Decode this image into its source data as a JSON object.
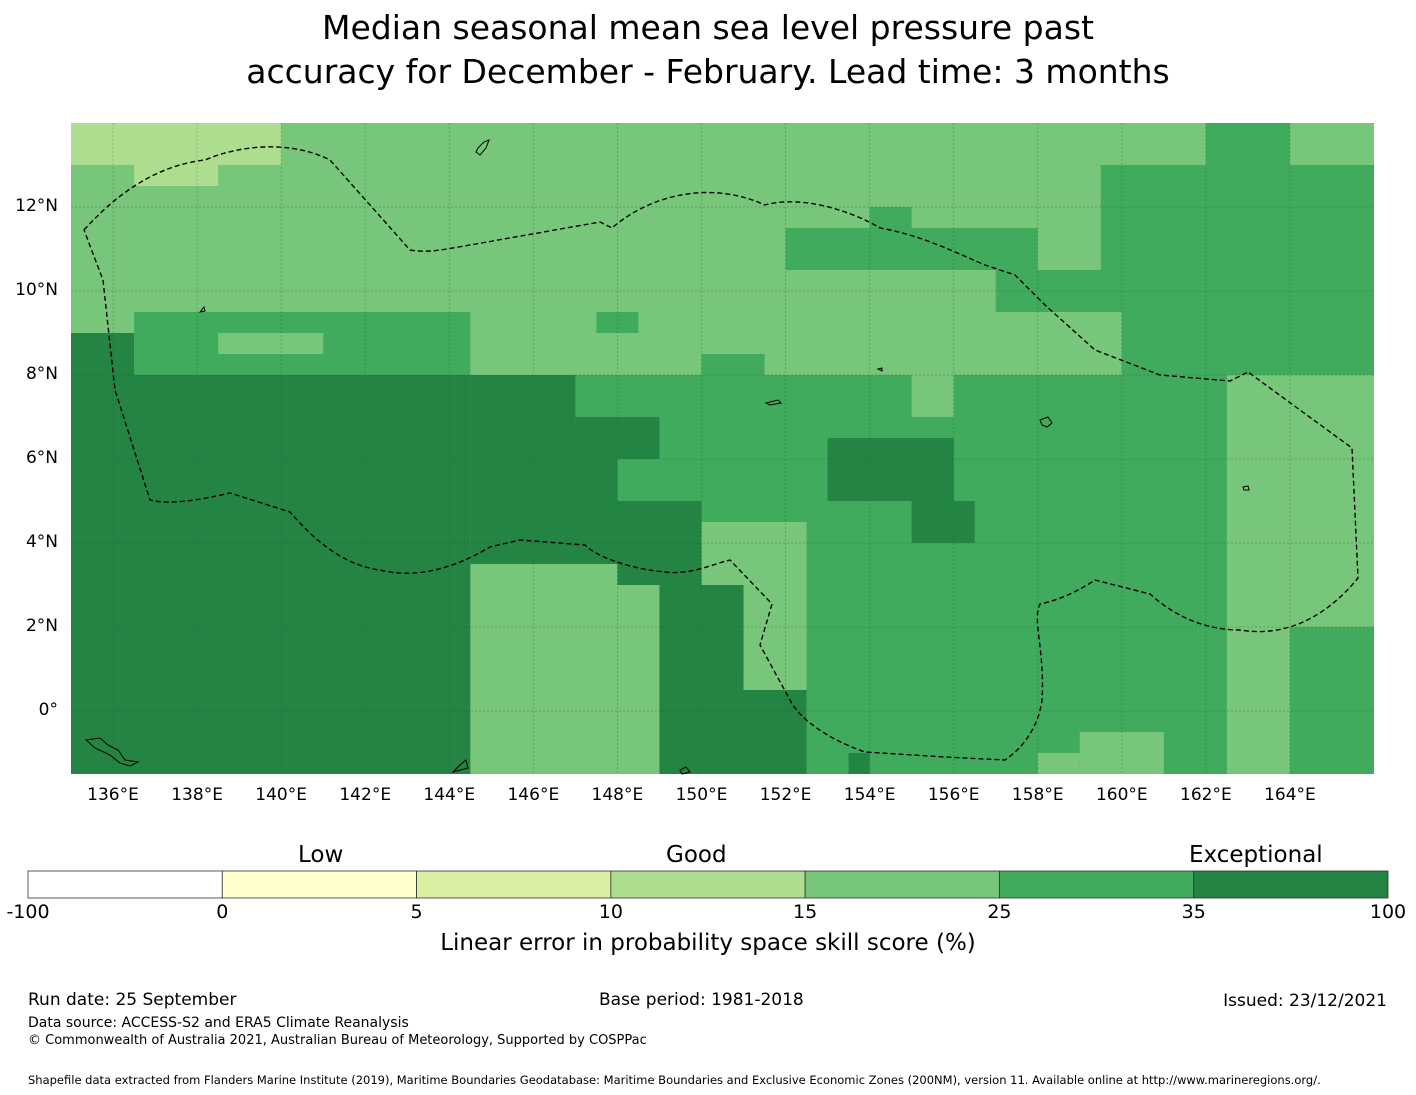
{
  "title": {
    "line1": "Median seasonal mean sea level pressure past",
    "line2": "accuracy for December - February. Lead time: 3 months"
  },
  "map": {
    "lon_labels": [
      "136°E",
      "138°E",
      "140°E",
      "142°E",
      "144°E",
      "146°E",
      "148°E",
      "150°E",
      "152°E",
      "154°E",
      "156°E",
      "158°E",
      "160°E",
      "162°E",
      "164°E"
    ],
    "lat_labels": [
      "12°N",
      "10°N",
      "8°N",
      "6°N",
      "4°N",
      "2°N",
      "0°"
    ],
    "lon_values": [
      136,
      138,
      140,
      142,
      144,
      146,
      148,
      150,
      152,
      154,
      156,
      158,
      160,
      162,
      164
    ],
    "lat_values": [
      12,
      10,
      8,
      6,
      4,
      2,
      0
    ],
    "lon_range": [
      135,
      166
    ],
    "lat_range": [
      -1.5,
      14
    ],
    "eez_boundary_style": "dashed",
    "skill_regions": [
      {
        "lon": [
          135,
          166
        ],
        "lat": [
          -1.5,
          14
        ],
        "class": "15-25"
      },
      {
        "lon": [
          135,
          140
        ],
        "lat": [
          13,
          14
        ],
        "class": "10-15"
      },
      {
        "lon": [
          135,
          136.5
        ],
        "lat": [
          10.5,
          13
        ],
        "class": "15-25"
      },
      {
        "lon": [
          136.5,
          138.5
        ],
        "lat": [
          12.5,
          13.5
        ],
        "class": "10-15"
      },
      {
        "lon": [
          152,
          158
        ],
        "lat": [
          10.5,
          11.5
        ],
        "class": "25-35"
      },
      {
        "lon": [
          154,
          155
        ],
        "lat": [
          11.5,
          12
        ],
        "class": "25-35"
      },
      {
        "lon": [
          157,
          166
        ],
        "lat": [
          9.5,
          10.5
        ],
        "class": "25-35"
      },
      {
        "lon": [
          159.5,
          166
        ],
        "lat": [
          10.5,
          13
        ],
        "class": "25-35"
      },
      {
        "lon": [
          162,
          164
        ],
        "lat": [
          13,
          14
        ],
        "class": "25-35"
      },
      {
        "lon": [
          160,
          166
        ],
        "lat": [
          8,
          9.5
        ],
        "class": "25-35"
      },
      {
        "lon": [
          136.5,
          144.5
        ],
        "lat": [
          8,
          9.5
        ],
        "class": "25-35"
      },
      {
        "lon": [
          135,
          136.5
        ],
        "lat": [
          8,
          9
        ],
        "class": "35-100"
      },
      {
        "lon": [
          138.5,
          141
        ],
        "lat": [
          8.5,
          9
        ],
        "class": "15-25"
      },
      {
        "lon": [
          145,
          146.5
        ],
        "lat": [
          7.5,
          8
        ],
        "class": "15-25"
      },
      {
        "lon": [
          147.5,
          148.5
        ],
        "lat": [
          9,
          9.5
        ],
        "class": "25-35"
      },
      {
        "lon": [
          150,
          151.5
        ],
        "lat": [
          8,
          8.5
        ],
        "class": "25-35"
      },
      {
        "lon": [
          144.5,
          166
        ],
        "lat": [
          4.5,
          8
        ],
        "class": "25-35"
      },
      {
        "lon": [
          135,
          144.5
        ],
        "lat": [
          -1.5,
          8
        ],
        "class": "35-100"
      },
      {
        "lon": [
          144.5,
          147
        ],
        "lat": [
          7,
          8
        ],
        "class": "35-100"
      },
      {
        "lon": [
          144.5,
          147
        ],
        "lat": [
          6,
          7
        ],
        "class": "35-100"
      },
      {
        "lon": [
          147,
          149
        ],
        "lat": [
          6,
          7
        ],
        "class": "35-100"
      },
      {
        "lon": [
          144.5,
          148
        ],
        "lat": [
          3.5,
          6
        ],
        "class": "35-100"
      },
      {
        "lon": [
          148,
          150
        ],
        "lat": [
          3,
          5
        ],
        "class": "35-100"
      },
      {
        "lon": [
          150,
          151
        ],
        "lat": [
          1,
          3
        ],
        "class": "25-35"
      },
      {
        "lon": [
          149,
          151
        ],
        "lat": [
          -1.5,
          3
        ],
        "class": "35-100"
      },
      {
        "lon": [
          151,
          152.5
        ],
        "lat": [
          -1.5,
          0.5
        ],
        "class": "35-100"
      },
      {
        "lon": [
          152.5,
          166
        ],
        "lat": [
          -1.5,
          4.5
        ],
        "class": "25-35"
      },
      {
        "lon": [
          153,
          156
        ],
        "lat": [
          5,
          6.5
        ],
        "class": "35-100"
      },
      {
        "lon": [
          155,
          156.5
        ],
        "lat": [
          4,
          5
        ],
        "class": "35-100"
      },
      {
        "lon": [
          155,
          156
        ],
        "lat": [
          7,
          8
        ],
        "class": "15-25"
      },
      {
        "lon": [
          162.5,
          166
        ],
        "lat": [
          2,
          8
        ],
        "class": "15-25"
      },
      {
        "lon": [
          162.5,
          164
        ],
        "lat": [
          -1.5,
          2
        ],
        "class": "15-25"
      },
      {
        "lon": [
          158,
          159
        ],
        "lat": [
          -1.5,
          -1
        ],
        "class": "15-25"
      },
      {
        "lon": [
          159,
          161
        ],
        "lat": [
          -1.5,
          -0.5
        ],
        "class": "15-25"
      },
      {
        "lon": [
          153.5,
          154
        ],
        "lat": [
          -1.5,
          -1
        ],
        "class": "35-100"
      }
    ]
  },
  "colorbar": {
    "words": [
      "Low",
      "Good",
      "Exceptional"
    ],
    "ticks": [
      "-100",
      "0",
      "5",
      "10",
      "15",
      "25",
      "35",
      "100"
    ],
    "colors": [
      "#ffffff",
      "#ffffcc",
      "#d9f0a3",
      "#addd8e",
      "#78c679",
      "#41ab5d",
      "#238443"
    ],
    "label": "Linear error in probability space skill score (%)"
  },
  "footer": {
    "run_date": "Run date: 25 September",
    "base_period": "Base period: 1981-2018",
    "issued": "Issued: 23/12/2021",
    "data_source": "Data source: ACCESS-S2 and ERA5 Climate Reanalysis",
    "copyright": "© Commonwealth of Australia 2021, Australian Bureau of Meteorology, Supported by COSPPac",
    "shapefile": "Shapefile data extracted from Flanders Marine Institute (2019), Maritime Boundaries Geodatabase: Maritime Boundaries and Exclusive Economic Zones (200NM), version 11. Available online at http://www.marineregions.org/."
  }
}
